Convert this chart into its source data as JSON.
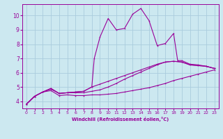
{
  "xlabel": "Windchill (Refroidissement éolien,°C)",
  "bg_color": "#cce8f0",
  "line_color": "#990099",
  "grid_color": "#aaccdd",
  "xlim": [
    -0.5,
    23.5
  ],
  "ylim": [
    3.5,
    10.8
  ],
  "xticks": [
    0,
    1,
    2,
    3,
    4,
    5,
    6,
    7,
    8,
    9,
    10,
    11,
    12,
    13,
    14,
    15,
    16,
    17,
    18,
    19,
    20,
    21,
    22,
    23
  ],
  "yticks": [
    4,
    5,
    6,
    7,
    8,
    9,
    10
  ],
  "series": [
    [
      0,
      3.8,
      1,
      4.35,
      2,
      4.65,
      3,
      4.75,
      4,
      4.4,
      5,
      4.45,
      6,
      4.4,
      7,
      4.4,
      8,
      4.45,
      9,
      4.45,
      10,
      4.5,
      11,
      4.55,
      12,
      4.65,
      13,
      4.75,
      14,
      4.85,
      15,
      4.95,
      16,
      5.1,
      17,
      5.25,
      18,
      5.45,
      19,
      5.6,
      20,
      5.75,
      21,
      5.9,
      22,
      6.05,
      23,
      6.2
    ],
    [
      0,
      3.8,
      1,
      4.35,
      2,
      4.65,
      3,
      4.85,
      4,
      4.55,
      5,
      4.6,
      6,
      4.6,
      7,
      4.6,
      8,
      4.7,
      9,
      4.8,
      10,
      5.0,
      11,
      5.25,
      12,
      5.55,
      13,
      5.8,
      14,
      6.05,
      15,
      6.3,
      16,
      6.55,
      17,
      6.75,
      18,
      6.8,
      19,
      6.75,
      20,
      6.55,
      21,
      6.5,
      22,
      6.45,
      23,
      6.3
    ],
    [
      0,
      3.8,
      1,
      4.35,
      2,
      4.65,
      3,
      4.9,
      4,
      4.55,
      5,
      4.6,
      6,
      4.65,
      7,
      4.7,
      8,
      5.0,
      8.3,
      7.0,
      9,
      8.5,
      10,
      9.8,
      11,
      9.0,
      12,
      9.1,
      13,
      10.1,
      14,
      10.5,
      15,
      9.65,
      16,
      7.9,
      17,
      8.05,
      18,
      8.75,
      18.5,
      6.85,
      19,
      6.85,
      20,
      6.6,
      21,
      6.55,
      22,
      6.45,
      23,
      6.3
    ],
    [
      0,
      3.8,
      1,
      4.35,
      2,
      4.65,
      3,
      4.9,
      4,
      4.55,
      5,
      4.6,
      6,
      4.65,
      7,
      4.7,
      8,
      5.0,
      9,
      5.2,
      10,
      5.4,
      11,
      5.6,
      12,
      5.8,
      13,
      6.0,
      14,
      6.2,
      15,
      6.4,
      16,
      6.6,
      17,
      6.75,
      18,
      6.8,
      19,
      6.75,
      20,
      6.55,
      21,
      6.5,
      22,
      6.45,
      23,
      6.3
    ]
  ]
}
